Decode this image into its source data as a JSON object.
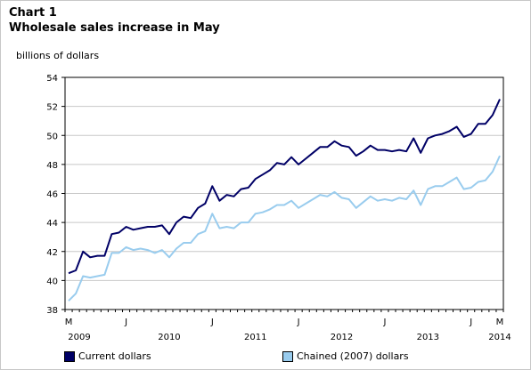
{
  "chart_data": {
    "type": "line",
    "chart_label": "Chart 1",
    "title": "Wholesale sales increase in May",
    "ylabel": "billions of dollars",
    "xlabel": "",
    "ylim": [
      38,
      54
    ],
    "yticks": [
      38,
      40,
      42,
      44,
      46,
      48,
      50,
      52,
      54
    ],
    "grid": true,
    "legend_position": "bottom",
    "x_month_ticks": [
      {
        "label": "M",
        "index": 0
      },
      {
        "label": "J",
        "index": 8
      },
      {
        "label": "J",
        "index": 20
      },
      {
        "label": "J",
        "index": 32
      },
      {
        "label": "J",
        "index": 44
      },
      {
        "label": "J",
        "index": 56
      },
      {
        "label": "M",
        "index": 60
      }
    ],
    "x_year_labels": [
      {
        "label": "2009",
        "index": 0
      },
      {
        "label": "2010",
        "index": 14
      },
      {
        "label": "2011",
        "index": 26
      },
      {
        "label": "2012",
        "index": 38
      },
      {
        "label": "2013",
        "index": 50
      },
      {
        "label": "2014",
        "index": 60
      }
    ],
    "x": [
      "2009-05",
      "2009-06",
      "2009-07",
      "2009-08",
      "2009-09",
      "2009-10",
      "2009-11",
      "2009-12",
      "2010-01",
      "2010-02",
      "2010-03",
      "2010-04",
      "2010-05",
      "2010-06",
      "2010-07",
      "2010-08",
      "2010-09",
      "2010-10",
      "2010-11",
      "2010-12",
      "2011-01",
      "2011-02",
      "2011-03",
      "2011-04",
      "2011-05",
      "2011-06",
      "2011-07",
      "2011-08",
      "2011-09",
      "2011-10",
      "2011-11",
      "2011-12",
      "2012-01",
      "2012-02",
      "2012-03",
      "2012-04",
      "2012-05",
      "2012-06",
      "2012-07",
      "2012-08",
      "2012-09",
      "2012-10",
      "2012-11",
      "2012-12",
      "2013-01",
      "2013-02",
      "2013-03",
      "2013-04",
      "2013-05",
      "2013-06",
      "2013-07",
      "2013-08",
      "2013-09",
      "2013-10",
      "2013-11",
      "2013-12",
      "2014-01",
      "2014-02",
      "2014-03",
      "2014-04",
      "2014-05"
    ],
    "series": [
      {
        "name": "Current dollars",
        "color": "#000066",
        "values": [
          40.5,
          40.7,
          42.0,
          41.6,
          41.7,
          41.7,
          43.2,
          43.3,
          43.7,
          43.5,
          43.6,
          43.7,
          43.7,
          43.8,
          43.2,
          44.0,
          44.4,
          44.3,
          45.0,
          45.3,
          46.5,
          45.5,
          45.9,
          45.8,
          46.3,
          46.4,
          47.0,
          47.3,
          47.6,
          48.1,
          48.0,
          48.5,
          48.0,
          48.4,
          48.8,
          49.2,
          49.2,
          49.6,
          49.3,
          49.2,
          48.6,
          48.9,
          49.3,
          49.0,
          49.0,
          48.9,
          49.0,
          48.9,
          49.8,
          48.8,
          49.8,
          50.0,
          50.1,
          50.3,
          50.6,
          49.9,
          50.1,
          50.8,
          50.8,
          51.4,
          52.5
        ]
      },
      {
        "name": "Chained (2007) dollars",
        "color": "#99ccee",
        "values": [
          38.6,
          39.1,
          40.3,
          40.2,
          40.3,
          40.4,
          41.9,
          41.9,
          42.3,
          42.1,
          42.2,
          42.1,
          41.9,
          42.1,
          41.6,
          42.2,
          42.6,
          42.6,
          43.2,
          43.4,
          44.6,
          43.6,
          43.7,
          43.6,
          44.0,
          44.0,
          44.6,
          44.7,
          44.9,
          45.2,
          45.2,
          45.5,
          45.0,
          45.3,
          45.6,
          45.9,
          45.8,
          46.1,
          45.7,
          45.6,
          45.0,
          45.4,
          45.8,
          45.5,
          45.6,
          45.5,
          45.7,
          45.6,
          46.2,
          45.2,
          46.3,
          46.5,
          46.5,
          46.8,
          47.1,
          46.3,
          46.4,
          46.8,
          46.9,
          47.5,
          48.6
        ]
      }
    ]
  }
}
